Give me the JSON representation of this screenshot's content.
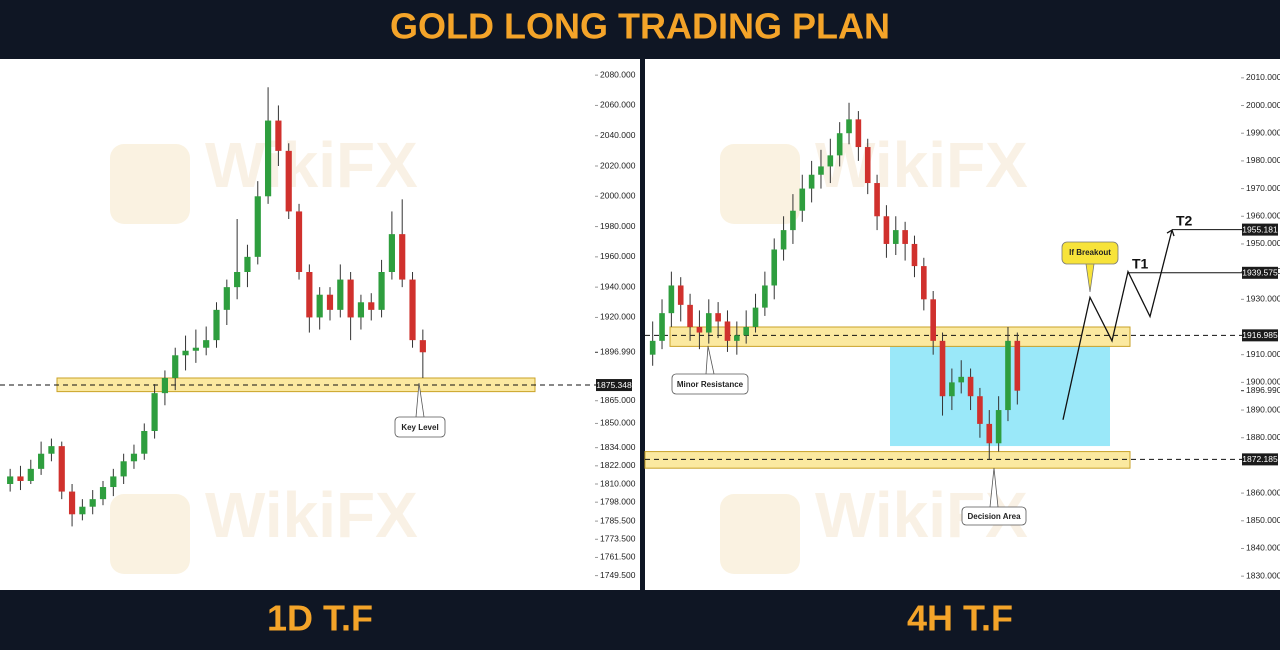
{
  "title": "GOLD LONG TRADING PLAN",
  "watermark": "WikiFX",
  "chart_data": [
    {
      "type": "candlestick",
      "caption": "1D T.F",
      "up_color": "#2e9e3e",
      "down_color": "#d0312d",
      "ylim": [
        1740,
        2090
      ],
      "yticks": [
        {
          "value": 2080,
          "label": "2080.000"
        },
        {
          "value": 2060,
          "label": "2060.000"
        },
        {
          "value": 2040,
          "label": "2040.000"
        },
        {
          "value": 2020,
          "label": "2020.000"
        },
        {
          "value": 2000,
          "label": "2000.000"
        },
        {
          "value": 1980,
          "label": "1980.000"
        },
        {
          "value": 1960,
          "label": "1960.000"
        },
        {
          "value": 1940,
          "label": "1940.000"
        },
        {
          "value": 1920,
          "label": "1920.000"
        },
        {
          "value": 1865,
          "label": "1865.000"
        },
        {
          "value": 1850,
          "label": "1850.000"
        },
        {
          "value": 1834,
          "label": "1834.000"
        },
        {
          "value": 1822,
          "label": "1822.000"
        },
        {
          "value": 1810,
          "label": "1810.000"
        },
        {
          "value": 1798,
          "label": "1798.000"
        },
        {
          "value": 1785.5,
          "label": "1785.500"
        },
        {
          "value": 1773.5,
          "label": "1773.500"
        },
        {
          "value": 1761.5,
          "label": "1761.500"
        },
        {
          "value": 1749.5,
          "label": "1749.500"
        }
      ],
      "open": [
        1810,
        1815,
        1812,
        1820,
        1830,
        1835,
        1805,
        1790,
        1795,
        1800,
        1808,
        1815,
        1825,
        1830,
        1845,
        1870,
        1880,
        1895,
        1898,
        1900,
        1905,
        1925,
        1940,
        1950,
        1960,
        2000,
        2050,
        2030,
        1990,
        1950,
        1920,
        1935,
        1925,
        1945,
        1920,
        1930,
        1925,
        1950,
        1975,
        1945,
        1905
      ],
      "high": [
        1820,
        1822,
        1826,
        1838,
        1840,
        1838,
        1810,
        1800,
        1806,
        1812,
        1820,
        1830,
        1836,
        1850,
        1876,
        1885,
        1900,
        1908,
        1912,
        1914,
        1930,
        1945,
        1985,
        1968,
        2010,
        2072,
        2060,
        2035,
        1995,
        1955,
        1940,
        1940,
        1955,
        1950,
        1935,
        1936,
        1958,
        1990,
        1998,
        1950,
        1912
      ],
      "low": [
        1805,
        1806,
        1810,
        1816,
        1825,
        1800,
        1782,
        1786,
        1790,
        1796,
        1802,
        1810,
        1820,
        1826,
        1840,
        1862,
        1872,
        1885,
        1890,
        1895,
        1900,
        1915,
        1932,
        1940,
        1955,
        1995,
        2020,
        1985,
        1945,
        1910,
        1912,
        1918,
        1920,
        1905,
        1912,
        1918,
        1920,
        1945,
        1940,
        1900,
        1880
      ],
      "close": [
        1815,
        1812,
        1820,
        1830,
        1835,
        1805,
        1790,
        1795,
        1800,
        1808,
        1815,
        1825,
        1830,
        1845,
        1870,
        1880,
        1895,
        1898,
        1900,
        1905,
        1925,
        1940,
        1950,
        1960,
        2000,
        2050,
        2030,
        1990,
        1950,
        1920,
        1935,
        1925,
        1945,
        1920,
        1930,
        1925,
        1950,
        1975,
        1945,
        1905,
        1896.99
      ],
      "price_label": {
        "value": 1896.99,
        "label": "1896.990"
      },
      "levels": [
        {
          "value": 1875.348,
          "label": "1875.348"
        }
      ],
      "zones": [
        [
          1871,
          1880
        ]
      ],
      "annotations": [
        "Key Level"
      ]
    },
    {
      "type": "candlestick",
      "caption": "4H T.F",
      "up_color": "#2e9e3e",
      "down_color": "#d0312d",
      "ylim": [
        1825,
        2015
      ],
      "yticks": [
        {
          "value": 2010,
          "label": "2010.000"
        },
        {
          "value": 2000,
          "label": "2000.000"
        },
        {
          "value": 1990,
          "label": "1990.000"
        },
        {
          "value": 1980,
          "label": "1980.000"
        },
        {
          "value": 1970,
          "label": "1970.000"
        },
        {
          "value": 1960,
          "label": "1960.000"
        },
        {
          "value": 1950,
          "label": "1950.000"
        },
        {
          "value": 1940,
          "label": "1940.000"
        },
        {
          "value": 1930,
          "label": "1930.000"
        },
        {
          "value": 1910,
          "label": "1910.000"
        },
        {
          "value": 1900,
          "label": "1900.000"
        },
        {
          "value": 1890,
          "label": "1890.000"
        },
        {
          "value": 1880,
          "label": "1880.000"
        },
        {
          "value": 1860,
          "label": "1860.000"
        },
        {
          "value": 1850,
          "label": "1850.000"
        },
        {
          "value": 1840,
          "label": "1840.000"
        },
        {
          "value": 1830,
          "label": "1830.000"
        }
      ],
      "open": [
        1910,
        1915,
        1925,
        1935,
        1928,
        1920,
        1918,
        1925,
        1922,
        1915,
        1917,
        1920,
        1927,
        1935,
        1948,
        1955,
        1962,
        1970,
        1975,
        1978,
        1982,
        1990,
        1995,
        1985,
        1972,
        1960,
        1950,
        1955,
        1950,
        1942,
        1930,
        1915,
        1895,
        1900,
        1902,
        1895,
        1885,
        1878,
        1890,
        1915
      ],
      "high": [
        1922,
        1930,
        1940,
        1938,
        1932,
        1926,
        1930,
        1929,
        1926,
        1922,
        1926,
        1932,
        1940,
        1952,
        1960,
        1968,
        1975,
        1980,
        1984,
        1988,
        1994,
        2001,
        1998,
        1988,
        1975,
        1964,
        1960,
        1958,
        1953,
        1945,
        1933,
        1918,
        1905,
        1908,
        1905,
        1898,
        1890,
        1895,
        1920,
        1918
      ],
      "low": [
        1906,
        1912,
        1920,
        1922,
        1915,
        1912,
        1914,
        1916,
        1911,
        1910,
        1914,
        1918,
        1924,
        1930,
        1944,
        1950,
        1958,
        1965,
        1970,
        1972,
        1978,
        1986,
        1980,
        1968,
        1955,
        1945,
        1946,
        1944,
        1938,
        1926,
        1910,
        1888,
        1890,
        1896,
        1890,
        1880,
        1872,
        1875,
        1886,
        1892
      ],
      "close": [
        1915,
        1925,
        1935,
        1928,
        1920,
        1918,
        1925,
        1922,
        1915,
        1917,
        1920,
        1927,
        1935,
        1948,
        1955,
        1962,
        1970,
        1975,
        1978,
        1982,
        1990,
        1995,
        1985,
        1972,
        1960,
        1950,
        1955,
        1950,
        1942,
        1930,
        1915,
        1895,
        1900,
        1902,
        1895,
        1885,
        1878,
        1890,
        1915,
        1896.99
      ],
      "price_label": {
        "value": 1896.99,
        "label": "1896.990"
      },
      "levels": [
        {
          "value": 1916.985,
          "label": "1916.985"
        },
        {
          "value": 1872.185,
          "label": "1872.185"
        }
      ],
      "zones": [
        [
          1913,
          1920
        ],
        [
          1869,
          1875
        ]
      ],
      "decision_box": [
        1877,
        1914
      ],
      "projection": [
        1886.5,
        1930.7,
        1915,
        1940,
        1923.8,
        1955
      ],
      "targets": [
        {
          "name": "T1",
          "value": 1939.575,
          "label": "1939.575"
        },
        {
          "name": "T2",
          "value": 1955.181,
          "label": "1955.181"
        }
      ],
      "annotations": [
        "Minor Resistance",
        "Decision Area",
        "If Breakout"
      ]
    }
  ]
}
